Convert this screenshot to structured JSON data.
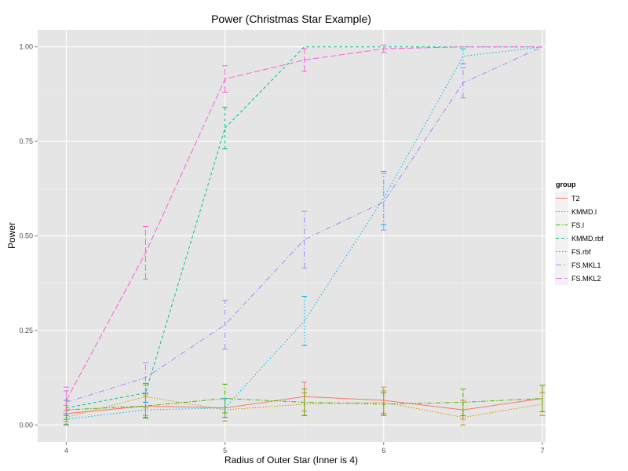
{
  "chart_data": {
    "type": "line",
    "title": "Power (Christmas Star Example)",
    "xlabel": "Radius of Outer Star (Inner is 4)",
    "ylabel": "Power",
    "x": [
      4,
      4.5,
      5,
      5.5,
      6,
      6.5,
      7
    ],
    "xlim": [
      3.82,
      7.02
    ],
    "ylim": [
      -0.045,
      1.045
    ],
    "xticks": [
      4,
      5,
      6,
      7
    ],
    "yticks": [
      0,
      0.25,
      0.5,
      0.75,
      1
    ],
    "xtick_labels": [
      "4",
      "5",
      "6",
      "7"
    ],
    "ytick_labels": [
      "0.00",
      "0.25",
      "0.50",
      "0.75",
      "1.00"
    ],
    "grid": true,
    "legend_title": "group",
    "legend_position": "right",
    "series": [
      {
        "name": "T2",
        "color": "#F8766D",
        "dash": "",
        "values": [
          0.03,
          0.05,
          0.045,
          0.075,
          0.065,
          0.04,
          0.07
        ],
        "errors": [
          0.022,
          0.025,
          0.025,
          0.038,
          0.035,
          0.025,
          0.035
        ]
      },
      {
        "name": "KMMD.l",
        "color": "#C49A00",
        "dash": "1.5,2",
        "values": [
          0.02,
          0.075,
          0.04,
          0.055,
          0.06,
          0.02,
          0.055
        ],
        "errors": [
          0.018,
          0.03,
          0.03,
          0.03,
          0.03,
          0.02,
          0.03
        ]
      },
      {
        "name": "FS.l",
        "color": "#53B400",
        "dash": "6,2,1.5,2",
        "values": [
          0.04,
          0.05,
          0.07,
          0.06,
          0.055,
          0.06,
          0.07
        ],
        "errors": [
          0.025,
          0.032,
          0.038,
          0.035,
          0.03,
          0.035,
          0.035
        ]
      },
      {
        "name": "KMMD.rbf",
        "color": "#00C094",
        "dash": "4,3",
        "values": [
          0.045,
          0.085,
          0.785,
          1.0,
          1.0,
          1.0,
          1.0
        ],
        "errors": [
          0.02,
          0.025,
          0.055,
          0.0,
          0.0,
          0.0,
          0.0
        ]
      },
      {
        "name": "FS.rbf",
        "color": "#00B6EB",
        "dash": "1.5,2.5",
        "values": [
          0.015,
          0.04,
          0.045,
          0.275,
          0.6,
          0.975,
          1.0
        ],
        "errors": [
          0.015,
          0.02,
          0.025,
          0.065,
          0.07,
          0.02,
          0.0
        ]
      },
      {
        "name": "FS.MKL1",
        "color": "#A58AFF",
        "dash": "7,3,1.5,3",
        "values": [
          0.06,
          0.125,
          0.265,
          0.49,
          0.59,
          0.905,
          1.0
        ],
        "errors": [
          0.03,
          0.04,
          0.065,
          0.075,
          0.075,
          0.04,
          0.0
        ]
      },
      {
        "name": "FS.MKL2",
        "color": "#FB61D7",
        "dash": "8,3",
        "values": [
          0.065,
          0.455,
          0.915,
          0.965,
          0.995,
          1.0,
          1.0
        ],
        "errors": [
          0.035,
          0.07,
          0.035,
          0.03,
          0.01,
          0.0,
          0.0
        ]
      }
    ]
  }
}
